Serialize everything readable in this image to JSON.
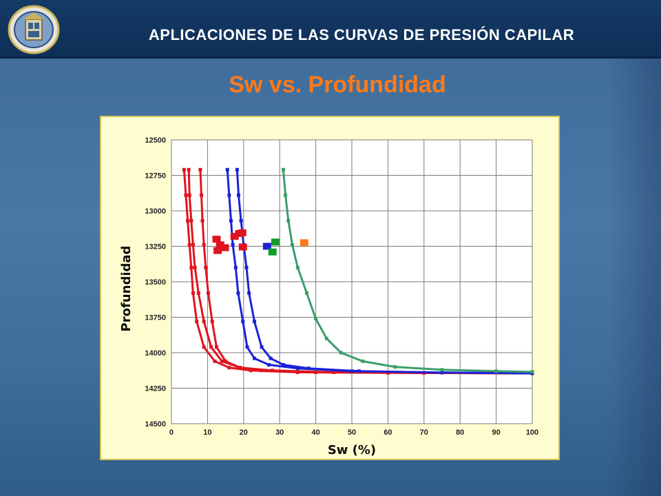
{
  "header": {
    "title": "APLICACIONES DE LAS CURVAS DE PRESIÓN CAPILAR"
  },
  "slide": {
    "title": "Sw vs. Profundidad"
  },
  "colors": {
    "red": "#e0141e",
    "blue": "#1b22d6",
    "green": "#3a9e6b",
    "orange": "#ff7a1a",
    "purple": "#7b2a8f",
    "darkgreen": "#119b2a"
  },
  "chart_data": {
    "type": "line",
    "xlabel": "Sw (%)",
    "ylabel": "Profundidad",
    "xlim": [
      0,
      100
    ],
    "ylim": [
      14500,
      12500
    ],
    "xticks": [
      0,
      10,
      20,
      30,
      40,
      50,
      60,
      70,
      80,
      90,
      100
    ],
    "yticks": [
      12500,
      12750,
      13000,
      13250,
      13500,
      13750,
      14000,
      14250,
      14500
    ],
    "grid": true,
    "series": [
      {
        "color": "red",
        "x": [
          3.5,
          4,
          4.5,
          5,
          5.5,
          6,
          7,
          9,
          12,
          16,
          22,
          35,
          60,
          100
        ],
        "y": [
          12710,
          12890,
          13070,
          13240,
          13400,
          13580,
          13780,
          13960,
          14060,
          14105,
          14125,
          14138,
          14142,
          14145
        ]
      },
      {
        "color": "red",
        "x": [
          4.8,
          5,
          5.5,
          6,
          6.5,
          7.5,
          9,
          11,
          14,
          19,
          28,
          45,
          70,
          100
        ],
        "y": [
          12710,
          12890,
          13070,
          13240,
          13400,
          13580,
          13780,
          13960,
          14060,
          14105,
          14125,
          14138,
          14142,
          14145
        ]
      },
      {
        "color": "red",
        "x": [
          8,
          8.3,
          8.6,
          9,
          9.5,
          10.2,
          11.3,
          12.5,
          15,
          19,
          25,
          40,
          70,
          100
        ],
        "y": [
          12710,
          12890,
          13070,
          13240,
          13400,
          13580,
          13780,
          13960,
          14060,
          14105,
          14125,
          14138,
          14142,
          14145
        ]
      },
      {
        "color": "blue",
        "x": [
          15.5,
          16,
          16.5,
          17,
          17.8,
          18.5,
          19.8,
          21,
          23,
          27,
          35,
          50,
          75,
          100
        ],
        "y": [
          12710,
          12890,
          13070,
          13240,
          13400,
          13580,
          13780,
          13960,
          14040,
          14085,
          14110,
          14130,
          14140,
          14145
        ]
      },
      {
        "color": "blue",
        "x": [
          18.2,
          18.6,
          19.3,
          20,
          20.8,
          21.5,
          23,
          25,
          27.5,
          31,
          38,
          52,
          75,
          100
        ],
        "y": [
          12710,
          12890,
          13070,
          13240,
          13400,
          13580,
          13780,
          13960,
          14040,
          14085,
          14110,
          14130,
          14140,
          14145
        ]
      },
      {
        "color": "green",
        "x": [
          31,
          31.6,
          32.4,
          33.5,
          35,
          37.5,
          40,
          43,
          47,
          53,
          62,
          75,
          90,
          100
        ],
        "y": [
          12710,
          12890,
          13070,
          13240,
          13400,
          13580,
          13760,
          13900,
          14000,
          14060,
          14100,
          14120,
          14130,
          14135
        ]
      }
    ],
    "markers": [
      {
        "color": "red",
        "x": 12.5,
        "y": 13200
      },
      {
        "color": "red",
        "x": 13.5,
        "y": 13240
      },
      {
        "color": "red",
        "x": 12.8,
        "y": 13280
      },
      {
        "color": "red",
        "x": 14.8,
        "y": 13260
      },
      {
        "color": "red",
        "x": 17.5,
        "y": 13180
      },
      {
        "color": "red",
        "x": 18.8,
        "y": 13160
      },
      {
        "color": "red",
        "x": 19.6,
        "y": 13155
      },
      {
        "color": "red",
        "x": 19.8,
        "y": 13255
      },
      {
        "color": "blue",
        "x": 26.5,
        "y": 13250
      },
      {
        "color": "darkgreen",
        "x": 28.8,
        "y": 13220
      },
      {
        "color": "darkgreen",
        "x": 28,
        "y": 13290
      },
      {
        "color": "orange",
        "x": 36.8,
        "y": 13225
      }
    ]
  }
}
